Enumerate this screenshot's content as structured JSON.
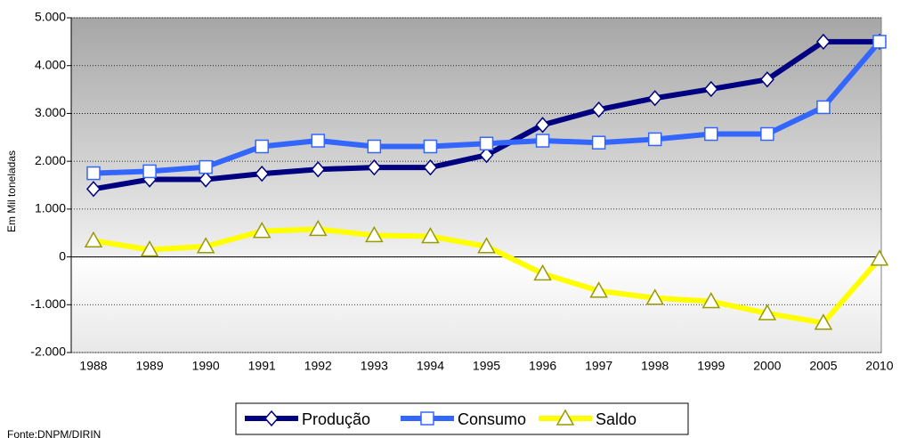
{
  "chart_data": {
    "type": "line",
    "y_label": "Em Mil toneladas",
    "source": "Fonte:DNPM/DIRIN",
    "categories": [
      "1988",
      "1989",
      "1990",
      "1991",
      "1992",
      "1993",
      "1994",
      "1995",
      "1996",
      "1997",
      "1998",
      "1999",
      "2000",
      "2005",
      "2010"
    ],
    "series": [
      {
        "name": "Produção",
        "color": "#000080",
        "marker": "diamond",
        "values": [
          1420,
          1620,
          1620,
          1740,
          1830,
          1870,
          1870,
          2130,
          2760,
          3080,
          3320,
          3510,
          3710,
          4500,
          4500
        ]
      },
      {
        "name": "Consumo",
        "color": "#3366ff",
        "marker": "square",
        "values": [
          1750,
          1790,
          1880,
          2310,
          2430,
          2310,
          2310,
          2370,
          2430,
          2390,
          2460,
          2570,
          2570,
          3130,
          4500
        ]
      },
      {
        "name": "Saldo",
        "color": "#ffff00",
        "marker": "triangle",
        "values": [
          340,
          150,
          220,
          540,
          580,
          450,
          430,
          220,
          -350,
          -710,
          -860,
          -930,
          -1180,
          -1380,
          -40
        ]
      }
    ],
    "ylim": [
      -2000,
      5000
    ],
    "yticks": [
      {
        "value": -2000,
        "label": "-2.000"
      },
      {
        "value": -1000,
        "label": "-1.000"
      },
      0,
      {
        "value": 1000,
        "label": "1.000"
      },
      {
        "value": 2000,
        "label": "2.000"
      },
      {
        "value": 3000,
        "label": "3.000"
      },
      {
        "value": 4000,
        "label": "4.000"
      },
      {
        "value": 5000,
        "label": "5.000"
      }
    ],
    "grid": true,
    "legend": "bottom"
  }
}
